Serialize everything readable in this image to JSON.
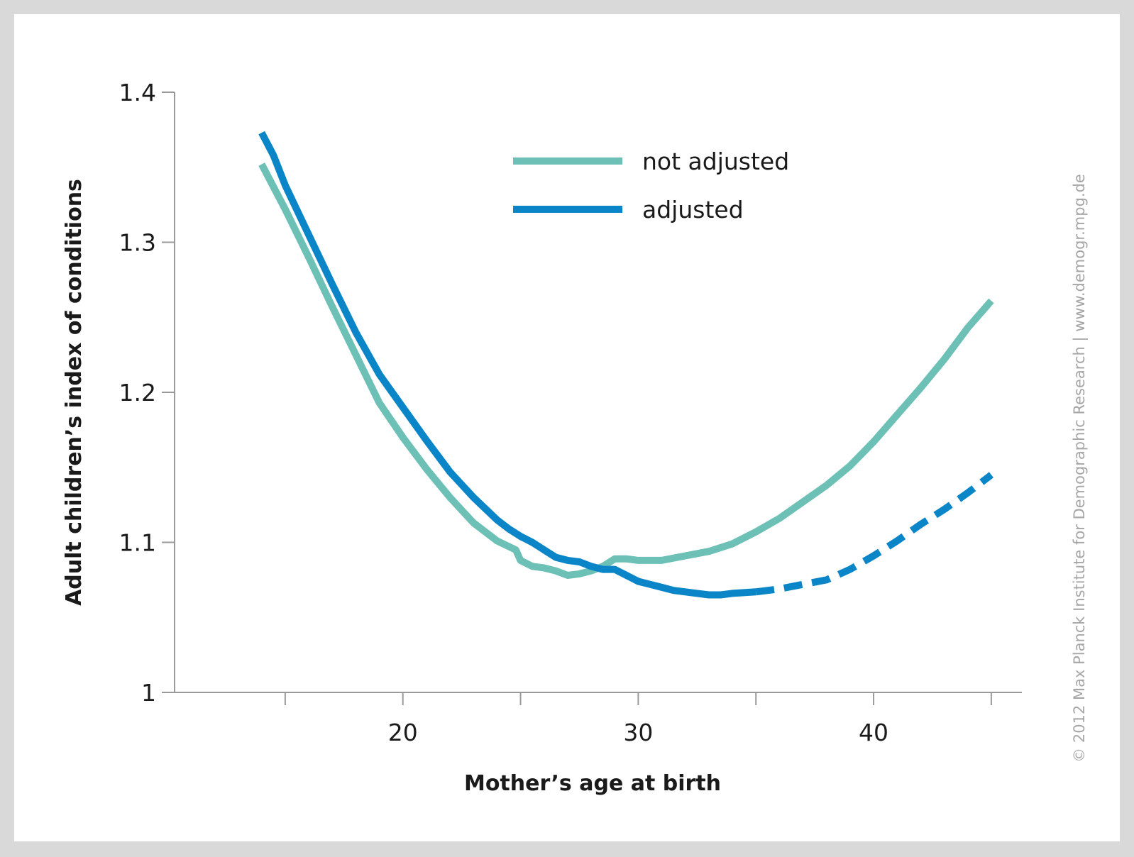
{
  "credit": "© 2012 Max Planck Institute for Demographic Research | www.demogr.mpg.de",
  "chart_data": {
    "type": "line",
    "title": "",
    "xlabel": "Mother’s age at birth",
    "ylabel": "Adult children’s index of conditions",
    "xlim": [
      10.3,
      46.3
    ],
    "ylim": [
      1.0,
      1.4
    ],
    "x_ticks": [
      20,
      30,
      40
    ],
    "x_minor_ticks": [
      15,
      25,
      35,
      45
    ],
    "y_ticks": [
      {
        "value": 1.0,
        "label": "1"
      },
      {
        "value": 1.1,
        "label": "1.1"
      },
      {
        "value": 1.2,
        "label": "1.2"
      },
      {
        "value": 1.3,
        "label": "1.3"
      },
      {
        "value": 1.4,
        "label": "1.4"
      }
    ],
    "grid": false,
    "legend_position": "top-center",
    "series": [
      {
        "name": "not adjusted",
        "color": "#6cc0b5",
        "style": "solid",
        "points": [
          [
            14.0,
            1.352
          ],
          [
            15.0,
            1.322
          ],
          [
            16.0,
            1.29
          ],
          [
            17.0,
            1.257
          ],
          [
            18.0,
            1.225
          ],
          [
            19.0,
            1.193
          ],
          [
            20.0,
            1.17
          ],
          [
            21.0,
            1.149
          ],
          [
            22.0,
            1.13
          ],
          [
            23.0,
            1.113
          ],
          [
            24.0,
            1.101
          ],
          [
            24.8,
            1.095
          ],
          [
            25.0,
            1.088
          ],
          [
            25.5,
            1.084
          ],
          [
            26.0,
            1.083
          ],
          [
            26.5,
            1.081
          ],
          [
            27.0,
            1.078
          ],
          [
            27.5,
            1.079
          ],
          [
            28.0,
            1.081
          ],
          [
            28.5,
            1.084
          ],
          [
            29.0,
            1.089
          ],
          [
            29.5,
            1.089
          ],
          [
            30.0,
            1.088
          ],
          [
            31.0,
            1.088
          ],
          [
            32.0,
            1.091
          ],
          [
            33.0,
            1.094
          ],
          [
            34.0,
            1.099
          ],
          [
            35.0,
            1.107
          ],
          [
            36.0,
            1.116
          ],
          [
            37.0,
            1.127
          ],
          [
            38.0,
            1.138
          ],
          [
            39.0,
            1.151
          ],
          [
            40.0,
            1.167
          ],
          [
            41.0,
            1.185
          ],
          [
            42.0,
            1.203
          ],
          [
            43.0,
            1.222
          ],
          [
            44.0,
            1.243
          ],
          [
            45.0,
            1.261
          ]
        ]
      },
      {
        "name": "adjusted",
        "color": "#0a86c8",
        "style": "solid",
        "points": [
          [
            14.0,
            1.373
          ],
          [
            14.5,
            1.358
          ],
          [
            15.0,
            1.338
          ],
          [
            16.0,
            1.305
          ],
          [
            17.0,
            1.272
          ],
          [
            18.0,
            1.24
          ],
          [
            19.0,
            1.212
          ],
          [
            20.0,
            1.19
          ],
          [
            21.0,
            1.168
          ],
          [
            22.0,
            1.147
          ],
          [
            23.0,
            1.13
          ],
          [
            24.0,
            1.115
          ],
          [
            24.5,
            1.109
          ],
          [
            25.0,
            1.104
          ],
          [
            25.5,
            1.1
          ],
          [
            26.0,
            1.095
          ],
          [
            26.5,
            1.09
          ],
          [
            27.0,
            1.088
          ],
          [
            27.5,
            1.087
          ],
          [
            28.0,
            1.084
          ],
          [
            28.5,
            1.082
          ],
          [
            29.0,
            1.082
          ],
          [
            29.5,
            1.078
          ],
          [
            30.0,
            1.074
          ],
          [
            30.5,
            1.072
          ],
          [
            31.0,
            1.07
          ],
          [
            31.5,
            1.068
          ],
          [
            32.0,
            1.067
          ],
          [
            32.5,
            1.066
          ],
          [
            33.0,
            1.065
          ],
          [
            33.5,
            1.065
          ],
          [
            34.0,
            1.066
          ],
          [
            35.0,
            1.067
          ]
        ]
      },
      {
        "name": "",
        "color": "#0a86c8",
        "style": "dashed",
        "points": [
          [
            35.0,
            1.067
          ],
          [
            36.0,
            1.069
          ],
          [
            37.0,
            1.072
          ],
          [
            38.0,
            1.075
          ],
          [
            39.0,
            1.082
          ],
          [
            40.0,
            1.091
          ],
          [
            41.0,
            1.101
          ],
          [
            42.0,
            1.112
          ],
          [
            43.0,
            1.122
          ],
          [
            44.0,
            1.133
          ],
          [
            45.0,
            1.145
          ]
        ]
      }
    ]
  }
}
